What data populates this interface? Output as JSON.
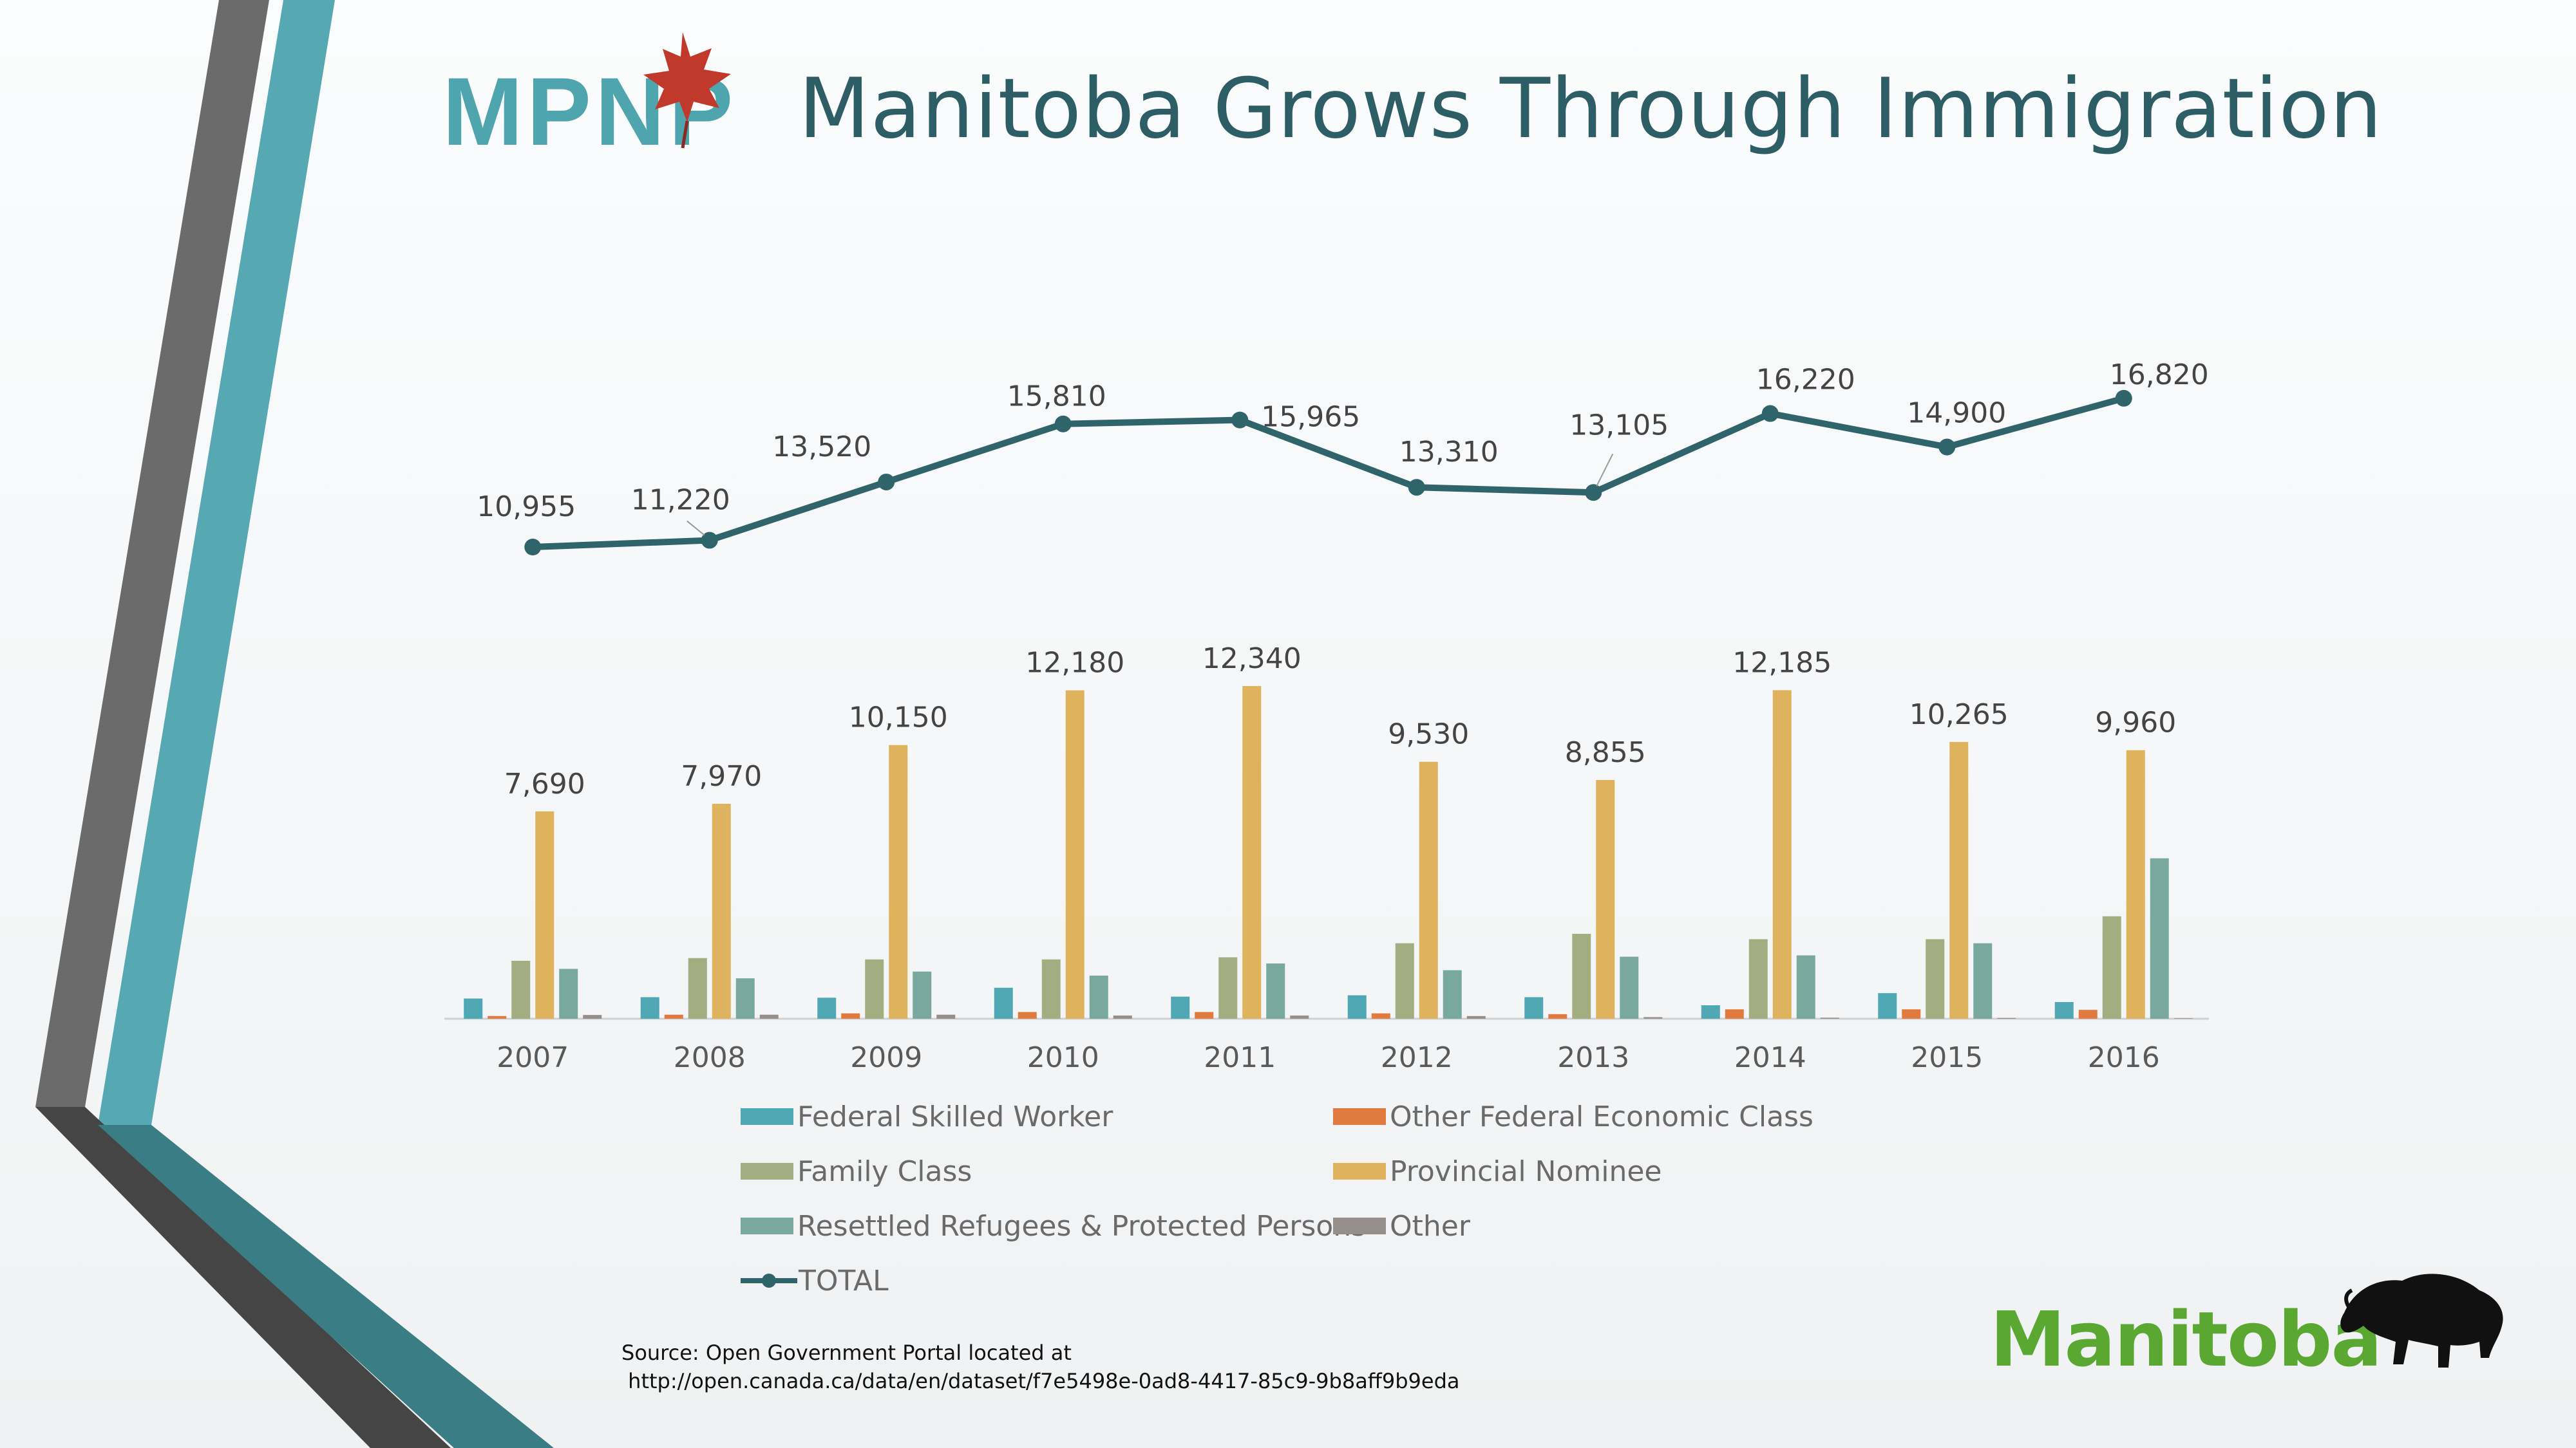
{
  "title": "Manitoba Grows Through Immigration",
  "logos": {
    "mpnp": "MPNP",
    "manitoba": "Manitoba"
  },
  "source": {
    "line1": "Source: Open Government Portal located at",
    "line2": " http://open.canada.ca/data/en/dataset/f7e5498e-0ad8-4417-85c9-9b8aff9b9eda"
  },
  "colors": {
    "title": "#2d5e66",
    "teal_stripe": "#56a9b2",
    "gray_stripe": "#6b6b6b",
    "mpnp_text": "#4fa5ad",
    "maple_leaf": "#c0392b",
    "manitoba_green": "#5aa832",
    "bison": "#111111"
  },
  "chart_data": {
    "type": "bar",
    "categories": [
      "2007",
      "2008",
      "2009",
      "2010",
      "2011",
      "2012",
      "2013",
      "2014",
      "2015",
      "2016"
    ],
    "series": [
      {
        "name": "Federal Skilled Worker",
        "color": "#4fa8b3",
        "values": [
          750,
          800,
          780,
          1150,
          820,
          870,
          800,
          500,
          950,
          620
        ],
        "labels": false
      },
      {
        "name": "Other Federal Economic Class",
        "color": "#e07a3f",
        "values": [
          100,
          150,
          200,
          250,
          250,
          200,
          170,
          350,
          350,
          330
        ],
        "labels": false
      },
      {
        "name": "Family Class",
        "color": "#a4ad82",
        "values": [
          2150,
          2250,
          2200,
          2200,
          2280,
          2800,
          3150,
          2950,
          2950,
          3800
        ],
        "labels": false
      },
      {
        "name": "Provincial Nominee",
        "color": "#dfb35e",
        "values": [
          7690,
          7970,
          10150,
          12180,
          12340,
          9530,
          8855,
          12185,
          10265,
          9960
        ],
        "labels": true,
        "label_text": [
          "7,690",
          "7,970",
          "10,150",
          "12,180",
          "12,340",
          "9,530",
          "8,855",
          "12,185",
          "10,265",
          "9,960"
        ]
      },
      {
        "name": "Resettled Refugees & Protected Persons",
        "color": "#79a89f",
        "values": [
          1850,
          1500,
          1750,
          1600,
          2050,
          1800,
          2300,
          2350,
          2800,
          5950
        ],
        "labels": false
      },
      {
        "name": "Other",
        "color": "#958e8b",
        "values": [
          140,
          150,
          150,
          120,
          120,
          100,
          60,
          40,
          30,
          20
        ],
        "labels": false
      }
    ],
    "line": {
      "name": "TOTAL",
      "color": "#30646b",
      "values": [
        10955,
        11220,
        13520,
        15810,
        15965,
        13310,
        13105,
        16220,
        14900,
        16820
      ],
      "label_text": [
        "10,955",
        "11,220",
        "13,520",
        "15,810",
        "15,965",
        "13,310",
        "13,105",
        "16,220",
        "14,900",
        "16,820"
      ]
    },
    "legend_position": "bottom",
    "grid": false,
    "xlabel": "",
    "ylabel": ""
  }
}
